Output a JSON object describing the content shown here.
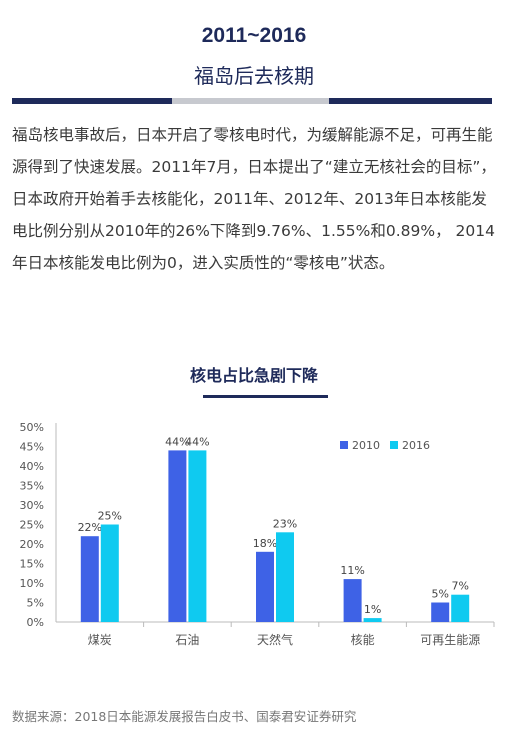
{
  "header": {
    "years": "2011~2016",
    "subtitle": "福岛后去核期"
  },
  "body_text": "福岛核电事故后，日本开启了零核电时代，为缓解能源不足，可再生能源得到了快速发展。2011年7月，日本提出了“建立无核社会的目标”，日本政府开始着手去核能化，2011年、2012年、2013年日本核能发电比例分别从2010年的26%下降到9.76%、1.55%和0.89%， 2014年日本核能发电比例为0，进入实质性的“零核电”状态。",
  "chart_title": "核电占比急剧下降",
  "chart_data": {
    "type": "bar",
    "categories": [
      "煤炭",
      "石油",
      "天然气",
      "核能",
      "可再生能源"
    ],
    "series": [
      {
        "name": "2010",
        "values": [
          22,
          44,
          18,
          11,
          5
        ],
        "labels": [
          "22%",
          "44%",
          "18%",
          "11%",
          "5%"
        ],
        "color": "#3e62e6"
      },
      {
        "name": "2016",
        "values": [
          25,
          44,
          23,
          1,
          7
        ],
        "labels": [
          "25%",
          "44%",
          "23%",
          "1%",
          "7%"
        ],
        "color": "#0fcaf0"
      }
    ],
    "y_ticks": [
      "0%",
      "5%",
      "10%",
      "15%",
      "20%",
      "25%",
      "30%",
      "35%",
      "40%",
      "45%",
      "50%"
    ],
    "ylim": [
      0,
      50
    ],
    "legend_position": "top-right",
    "grid": false
  },
  "source": "数据来源：2018日本能源发展报告白皮书、国泰君安证券研究"
}
